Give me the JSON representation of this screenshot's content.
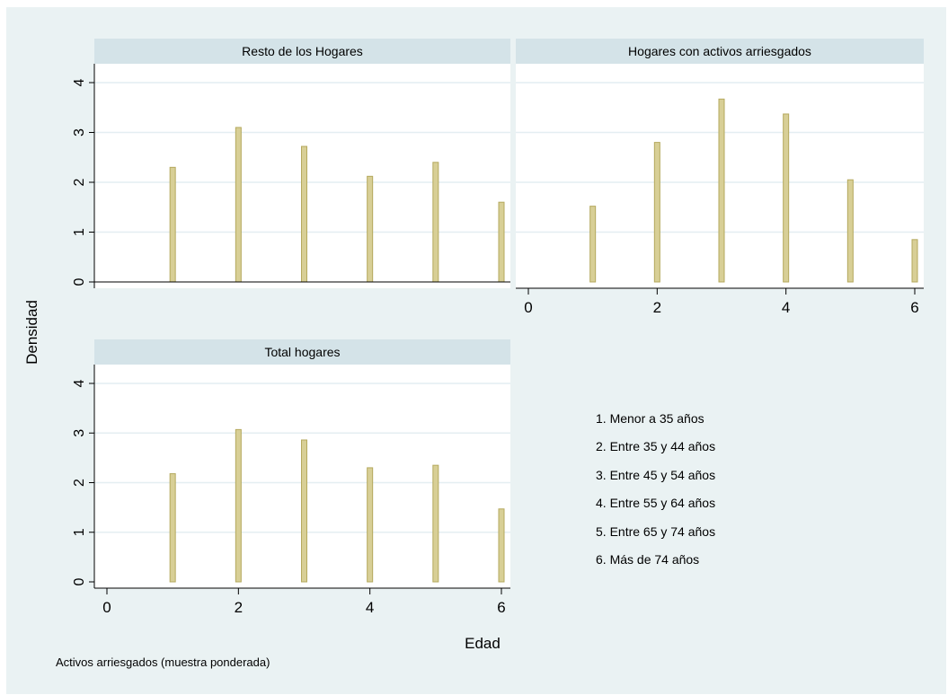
{
  "figure": {
    "ytitle": "Densidad",
    "xtitle": "Edad",
    "note": "Activos arriesgados (muestra ponderada)",
    "legend": [
      "1. Menor a 35 años",
      "2. Entre 35 y 44 años",
      "3. Entre 45 y 54 años",
      "4. Entre 55 y 64 años",
      "5. Entre 65 y 74 años",
      "6. Más de 74 años"
    ],
    "colors": {
      "background": "#eaf2f3",
      "panel_header": "#d4e3e8",
      "plot_area": "#ffffff",
      "grid": "#e4eef2",
      "bar_fill": "#d8cf96",
      "bar_edge": "#b5a95e"
    }
  },
  "chart_data": [
    {
      "type": "bar",
      "title": "Resto de los Hogares",
      "x": [
        1,
        2,
        3,
        4,
        5,
        6
      ],
      "values": [
        2.3,
        3.1,
        2.72,
        2.12,
        2.4,
        1.6
      ],
      "xlim": [
        0,
        6
      ],
      "ylim": [
        0,
        4
      ],
      "yticks": [
        "0",
        "1",
        "2",
        "3",
        "4"
      ],
      "xticks": [],
      "grid": true
    },
    {
      "type": "bar",
      "title": "Hogares con activos arriesgados",
      "x": [
        1,
        2,
        3,
        4,
        5,
        6
      ],
      "values": [
        1.52,
        2.8,
        3.67,
        3.37,
        2.05,
        0.85
      ],
      "xlim": [
        0,
        6
      ],
      "ylim": [
        0,
        4
      ],
      "yticks": [],
      "xticks": [
        "0",
        "2",
        "4",
        "6"
      ],
      "grid": true
    },
    {
      "type": "bar",
      "title": "Total hogares",
      "x": [
        1,
        2,
        3,
        4,
        5,
        6
      ],
      "values": [
        2.18,
        3.07,
        2.86,
        2.3,
        2.35,
        1.47
      ],
      "xlim": [
        0,
        6
      ],
      "ylim": [
        0,
        4
      ],
      "yticks": [
        "0",
        "1",
        "2",
        "3",
        "4"
      ],
      "xticks": [
        "0",
        "2",
        "4",
        "6"
      ],
      "grid": true
    }
  ]
}
